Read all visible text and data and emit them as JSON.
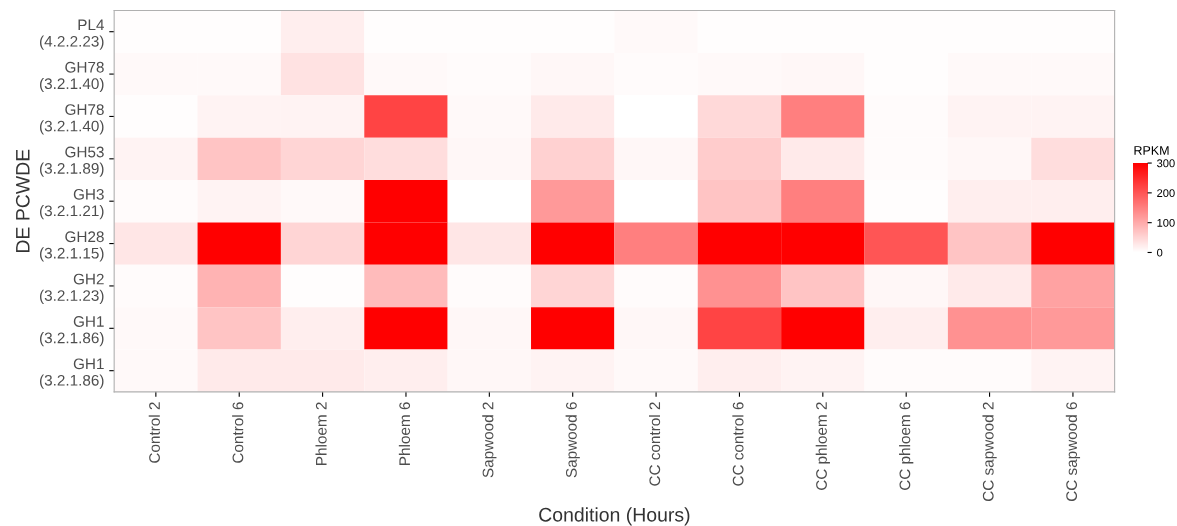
{
  "chart_data": {
    "type": "heatmap",
    "xlabel": "Condition (Hours)",
    "ylabel": "DE PCWDE",
    "clabel": "RPKM",
    "categories": [
      "Control 2",
      "Control 6",
      "Phloem 2",
      "Phloem 6",
      "Sapwood 2",
      "Sapwood 6",
      "CC control 2",
      "CC control 6",
      "CC phloem 2",
      "CC phloem 6",
      "CC sapwood 2",
      "CC sapwood 6"
    ],
    "y_categories": [
      "PL4\n(4.2.2.23)",
      "GH78\n(3.2.1.40)",
      "GH78\n(3.2.1.40)",
      "GH53\n(3.2.1.89)",
      "GH3\n(3.2.1.21)",
      "GH28\n(3.2.1.15)",
      "GH2\n(3.2.1.23)",
      "GH1\n(3.2.1.86)",
      "GH1\n(3.2.1.86)"
    ],
    "cells": [
      [
        3,
        3,
        20,
        3,
        3,
        3,
        8,
        3,
        3,
        3,
        3,
        3
      ],
      [
        8,
        8,
        35,
        8,
        5,
        10,
        5,
        8,
        10,
        3,
        8,
        8
      ],
      [
        3,
        15,
        15,
        220,
        8,
        25,
        0,
        45,
        150,
        5,
        15,
        15
      ],
      [
        15,
        70,
        50,
        40,
        10,
        55,
        10,
        60,
        25,
        5,
        10,
        40
      ],
      [
        5,
        15,
        8,
        300,
        0,
        120,
        0,
        70,
        150,
        3,
        20,
        20
      ],
      [
        30,
        300,
        50,
        300,
        30,
        300,
        150,
        300,
        300,
        200,
        70,
        300
      ],
      [
        5,
        90,
        3,
        80,
        5,
        50,
        5,
        130,
        70,
        10,
        25,
        110
      ],
      [
        8,
        70,
        20,
        300,
        10,
        300,
        10,
        220,
        300,
        20,
        130,
        120
      ],
      [
        8,
        25,
        25,
        20,
        10,
        15,
        8,
        20,
        15,
        5,
        5,
        15
      ]
    ],
    "colors": [
      "#ffffff",
      "#ff0000"
    ],
    "clim": [
      0,
      300
    ],
    "cticks": [
      0,
      100,
      200,
      300
    ]
  }
}
